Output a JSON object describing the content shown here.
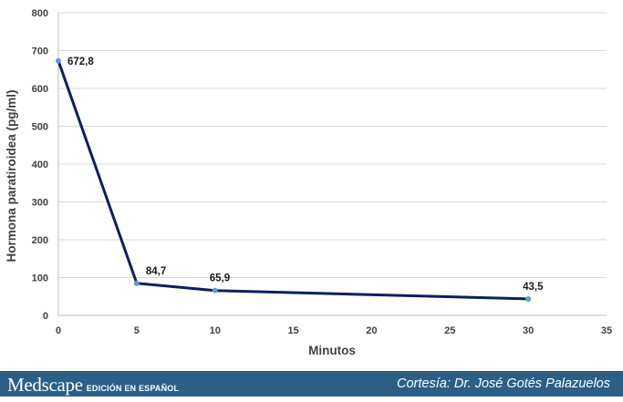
{
  "chart_data": {
    "type": "line",
    "xlabel": "Minutos",
    "ylabel": "Hormona paratiroidea (pg/ml)",
    "xlim": [
      0,
      35
    ],
    "ylim": [
      0,
      800
    ],
    "x_ticks": [
      0,
      5,
      10,
      15,
      20,
      25,
      30,
      35
    ],
    "y_ticks": [
      0,
      100,
      200,
      300,
      400,
      500,
      600,
      700,
      800
    ],
    "grid": "horizontal",
    "series": [
      {
        "x": [
          0,
          5,
          10,
          30
        ],
        "values": [
          672.8,
          84.7,
          65.9,
          43.5
        ],
        "labels": [
          "672,8",
          "84,7",
          "65,9",
          "43,5"
        ]
      }
    ],
    "colors": {
      "line": "#0d1f5c",
      "marker": "#5b9bd5",
      "grid": "#d9d9d9"
    }
  },
  "footer": {
    "brand_name": "Medscape",
    "brand_sub": "EDICIÓN EN ESPAÑOL",
    "credit": "Cortesía: Dr. José Gotés Palazuelos"
  },
  "colors": {
    "footer_bg": "#2c5f86"
  }
}
